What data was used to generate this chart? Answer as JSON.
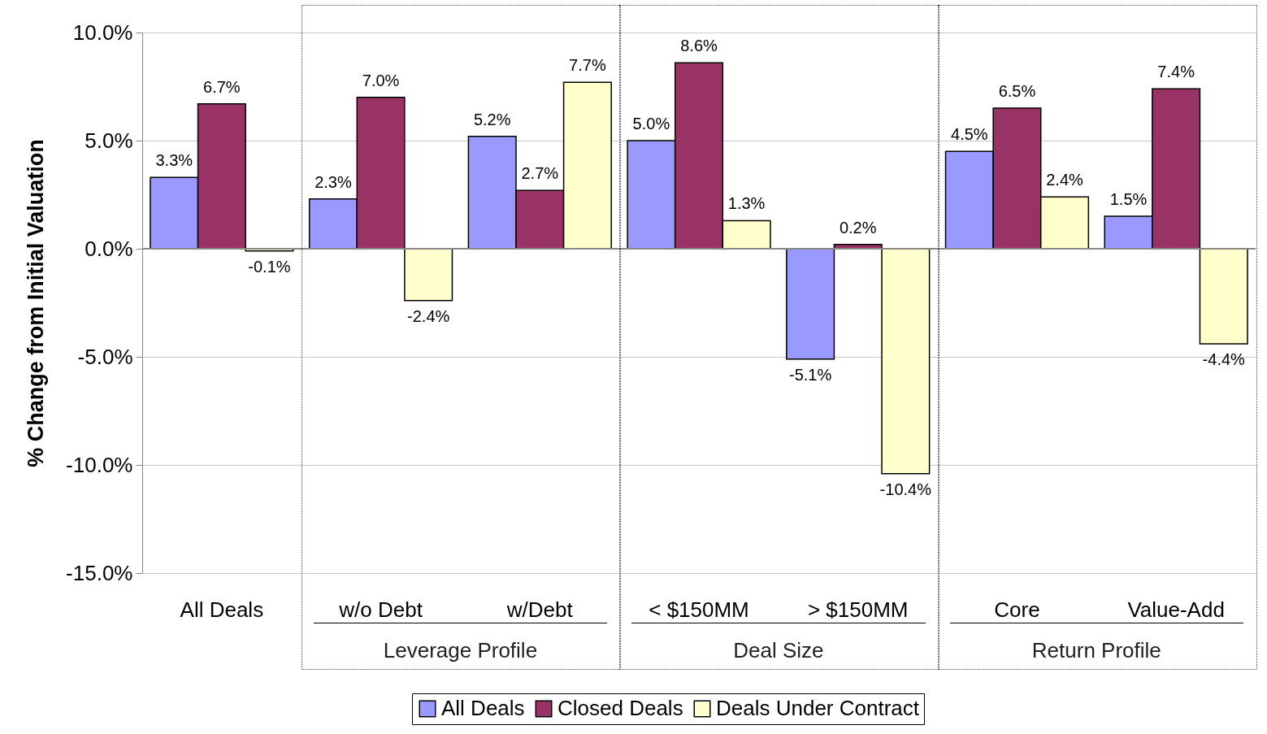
{
  "chart_data": {
    "type": "bar",
    "ylabel": "% Change from Initial Valuation",
    "categories": [
      "All Deals",
      "w/o Debt",
      "w/Debt",
      "< $150MM",
      "> $150MM",
      "Core",
      "Value-Add"
    ],
    "series": [
      {
        "name": "All Deals",
        "color": "#9999ff",
        "values": [
          3.3,
          2.3,
          5.2,
          5.0,
          -5.1,
          4.5,
          1.5
        ],
        "value_labels": [
          "3.3%",
          "2.3%",
          "5.2%",
          "5.0%",
          "-5.1%",
          "4.5%",
          "1.5%"
        ]
      },
      {
        "name": "Closed Deals",
        "color": "#993366",
        "values": [
          6.7,
          7.0,
          2.7,
          8.6,
          0.2,
          6.5,
          7.4
        ],
        "value_labels": [
          "6.7%",
          "7.0%",
          "2.7%",
          "8.6%",
          "0.2%",
          "6.5%",
          "7.4%"
        ]
      },
      {
        "name": "Deals Under Contract",
        "color": "#ffffcc",
        "values": [
          -0.1,
          -2.4,
          7.7,
          1.3,
          -10.4,
          2.4,
          -4.4
        ],
        "value_labels": [
          "-0.1%",
          "-2.4%",
          "7.7%",
          "1.3%",
          "-10.4%",
          "2.4%",
          "-4.4%"
        ]
      }
    ],
    "ylim": [
      -15,
      10
    ],
    "yticks": [
      {
        "value": -15,
        "label": "-15.0%"
      },
      {
        "value": -10,
        "label": "-10.0%"
      },
      {
        "value": -5,
        "label": "-5.0%"
      },
      {
        "value": 0,
        "label": "0.0%"
      },
      {
        "value": 5,
        "label": "5.0%"
      },
      {
        "value": 10,
        "label": "10.0%"
      }
    ],
    "grid": "y",
    "legend": "bottom",
    "annotations": [
      "Leverage Profile",
      "Deal Size",
      "Return Profile"
    ]
  }
}
